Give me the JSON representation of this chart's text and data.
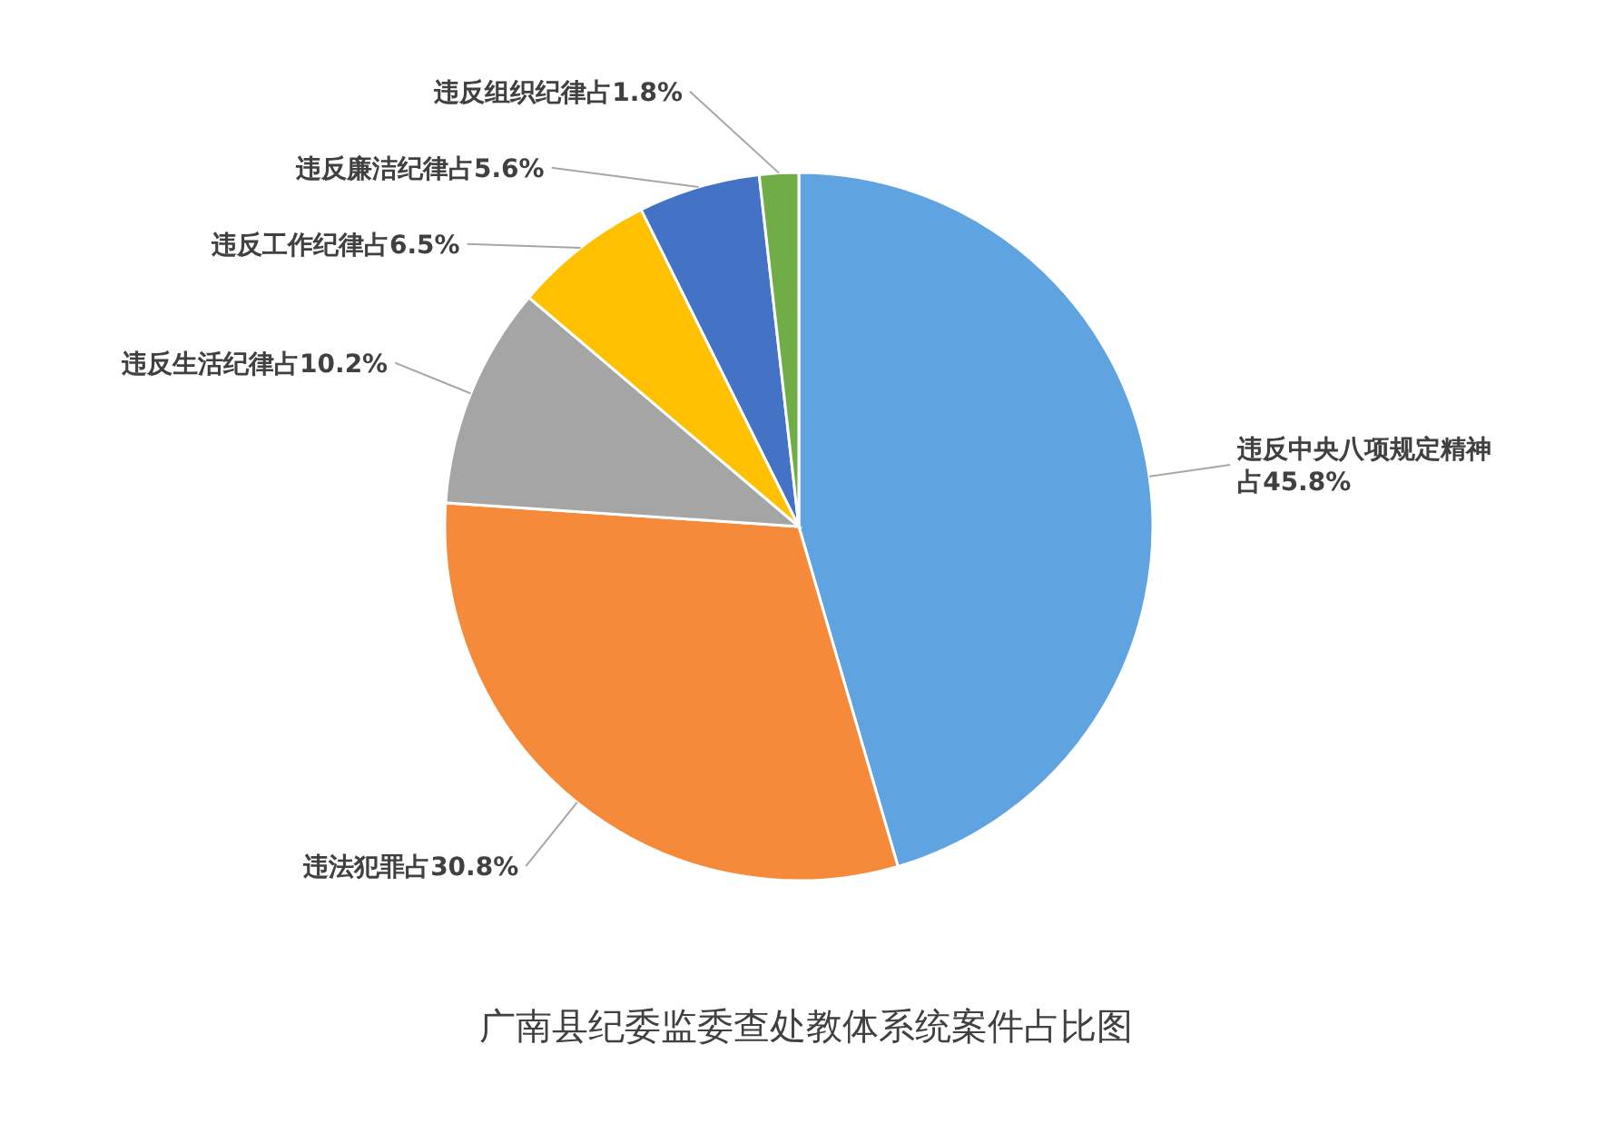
{
  "chart_data": {
    "type": "pie",
    "title": "广南县纪委监委查处教体系统案件占比图",
    "categories": [
      "违反中央八项规定精神",
      "违法犯罪",
      "违反生活纪律",
      "违反工作纪律",
      "违反廉洁纪律",
      "违反组织纪律"
    ],
    "values": [
      45.8,
      30.8,
      10.2,
      6.5,
      5.6,
      1.8
    ],
    "value_labels": [
      "占45.8%",
      "占30.8%",
      "占10.2%",
      "占6.5%",
      "占5.6%",
      "占1.8%"
    ],
    "colors": [
      "#5fa3e0",
      "#f58a3a",
      "#a5a5a5",
      "#ffc000",
      "#4472c4",
      "#70ad47"
    ]
  }
}
